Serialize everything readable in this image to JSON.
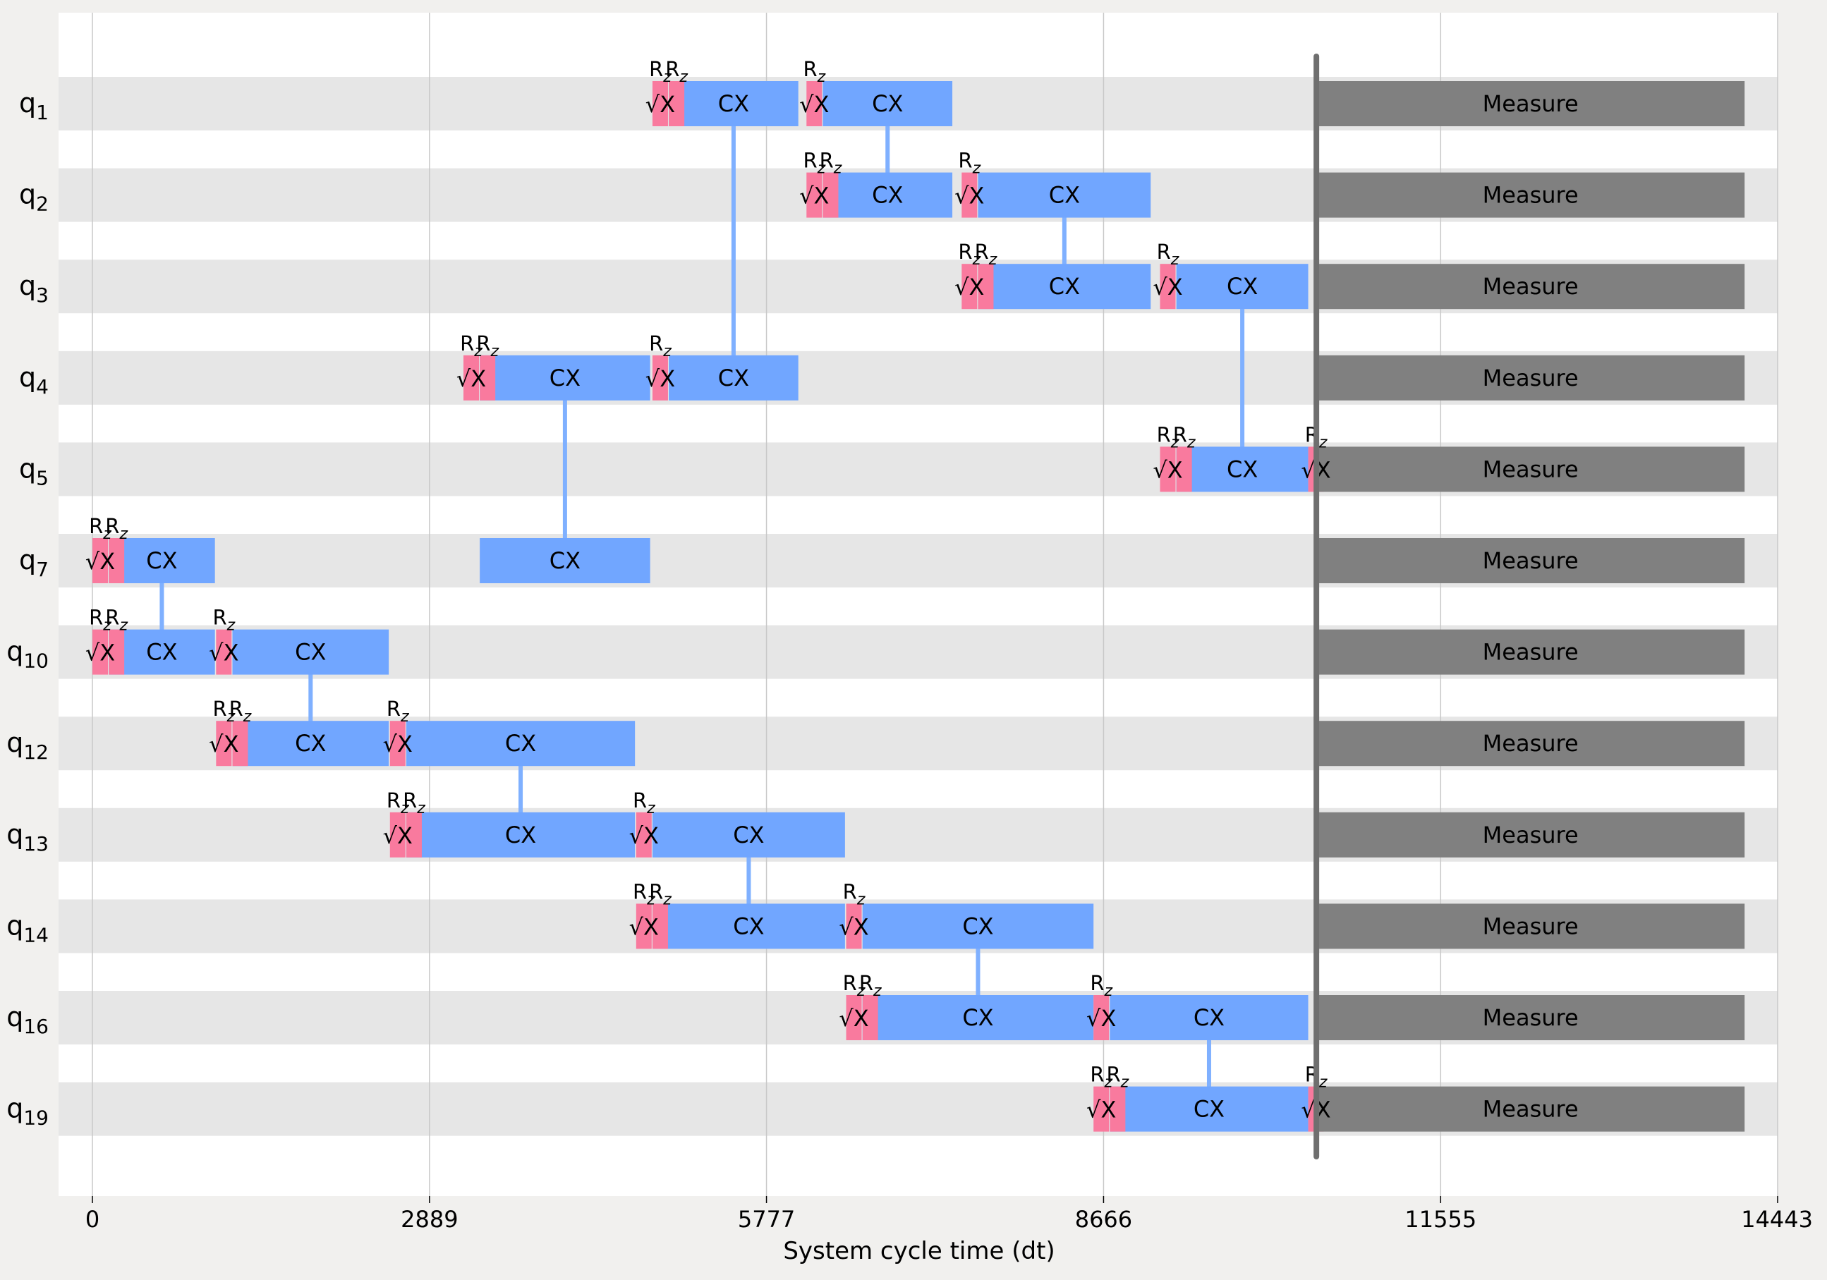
{
  "chart_data": {
    "type": "timeline",
    "xlabel": "System cycle time (dt)",
    "xlim": [
      -480,
      14443
    ],
    "xticks": [
      0,
      2889,
      5777,
      8666,
      11555,
      14443
    ],
    "xtick_labels": [
      "0",
      "2889",
      "5777",
      "8666",
      "11555",
      "14443"
    ],
    "grid": true,
    "qubits": [
      {
        "base": "q",
        "sub": "1"
      },
      {
        "base": "q",
        "sub": "2"
      },
      {
        "base": "q",
        "sub": "3"
      },
      {
        "base": "q",
        "sub": "4"
      },
      {
        "base": "q",
        "sub": "5"
      },
      {
        "base": "q",
        "sub": "7"
      },
      {
        "base": "q",
        "sub": "10"
      },
      {
        "base": "q",
        "sub": "12"
      },
      {
        "base": "q",
        "sub": "13"
      },
      {
        "base": "q",
        "sub": "14"
      },
      {
        "base": "q",
        "sub": "16"
      },
      {
        "base": "q",
        "sub": "19"
      }
    ],
    "gate_labels": {
      "rz": "R",
      "rz_sub": "z",
      "sx": "√X",
      "cx": "CX",
      "measure": "Measure"
    },
    "single_gates": [
      {
        "q": 0,
        "kind": "rz",
        "t": 4800
      },
      {
        "q": 0,
        "kind": "rz",
        "t": 4940
      },
      {
        "q": 0,
        "kind": "sx",
        "t": 4800
      },
      {
        "q": 0,
        "kind": "rz",
        "t": 6120
      },
      {
        "q": 0,
        "kind": "sx",
        "t": 6120
      },
      {
        "q": 1,
        "kind": "rz",
        "t": 6120
      },
      {
        "q": 1,
        "kind": "rz",
        "t": 6260
      },
      {
        "q": 1,
        "kind": "sx",
        "t": 6120
      },
      {
        "q": 1,
        "kind": "rz",
        "t": 7450
      },
      {
        "q": 1,
        "kind": "sx",
        "t": 7450
      },
      {
        "q": 2,
        "kind": "rz",
        "t": 7450
      },
      {
        "q": 2,
        "kind": "rz",
        "t": 7590
      },
      {
        "q": 2,
        "kind": "sx",
        "t": 7450
      },
      {
        "q": 2,
        "kind": "rz",
        "t": 9150
      },
      {
        "q": 2,
        "kind": "sx",
        "t": 9150
      },
      {
        "q": 3,
        "kind": "rz",
        "t": 3180
      },
      {
        "q": 3,
        "kind": "rz",
        "t": 3320
      },
      {
        "q": 3,
        "kind": "sx",
        "t": 3180
      },
      {
        "q": 3,
        "kind": "rz",
        "t": 4800
      },
      {
        "q": 3,
        "kind": "sx",
        "t": 4800
      },
      {
        "q": 4,
        "kind": "rz",
        "t": 9150
      },
      {
        "q": 4,
        "kind": "rz",
        "t": 9290
      },
      {
        "q": 4,
        "kind": "sx",
        "t": 9150
      },
      {
        "q": 4,
        "kind": "rz",
        "t": 10420
      },
      {
        "q": 4,
        "kind": "sx",
        "t": 10420
      },
      {
        "q": 5,
        "kind": "rz",
        "t": 0
      },
      {
        "q": 5,
        "kind": "rz",
        "t": 140
      },
      {
        "q": 5,
        "kind": "sx",
        "t": 0
      },
      {
        "q": 6,
        "kind": "rz",
        "t": 0
      },
      {
        "q": 6,
        "kind": "rz",
        "t": 140
      },
      {
        "q": 6,
        "kind": "sx",
        "t": 0
      },
      {
        "q": 6,
        "kind": "rz",
        "t": 1060
      },
      {
        "q": 6,
        "kind": "sx",
        "t": 1060
      },
      {
        "q": 7,
        "kind": "rz",
        "t": 1060
      },
      {
        "q": 7,
        "kind": "rz",
        "t": 1200
      },
      {
        "q": 7,
        "kind": "sx",
        "t": 1060
      },
      {
        "q": 7,
        "kind": "rz",
        "t": 2550
      },
      {
        "q": 7,
        "kind": "sx",
        "t": 2550
      },
      {
        "q": 8,
        "kind": "rz",
        "t": 2550
      },
      {
        "q": 8,
        "kind": "rz",
        "t": 2690
      },
      {
        "q": 8,
        "kind": "sx",
        "t": 2550
      },
      {
        "q": 8,
        "kind": "rz",
        "t": 4660
      },
      {
        "q": 8,
        "kind": "sx",
        "t": 4660
      },
      {
        "q": 9,
        "kind": "rz",
        "t": 4660
      },
      {
        "q": 9,
        "kind": "rz",
        "t": 4800
      },
      {
        "q": 9,
        "kind": "sx",
        "t": 4660
      },
      {
        "q": 9,
        "kind": "rz",
        "t": 6460
      },
      {
        "q": 9,
        "kind": "sx",
        "t": 6460
      },
      {
        "q": 10,
        "kind": "rz",
        "t": 6460
      },
      {
        "q": 10,
        "kind": "rz",
        "t": 6600
      },
      {
        "q": 10,
        "kind": "sx",
        "t": 6460
      },
      {
        "q": 10,
        "kind": "rz",
        "t": 8580
      },
      {
        "q": 10,
        "kind": "sx",
        "t": 8580
      },
      {
        "q": 11,
        "kind": "rz",
        "t": 8580
      },
      {
        "q": 11,
        "kind": "rz",
        "t": 8720
      },
      {
        "q": 11,
        "kind": "sx",
        "t": 8580
      },
      {
        "q": 11,
        "kind": "rz",
        "t": 10420
      },
      {
        "q": 11,
        "kind": "sx",
        "t": 10420
      }
    ],
    "cx_gates": [
      {
        "q1": 0,
        "q2": 3,
        "t0": 4940,
        "t1": 6050
      },
      {
        "q1": 0,
        "q2": 1,
        "t0": 6260,
        "t1": 7370
      },
      {
        "q1": 1,
        "q2": 2,
        "t0": 7590,
        "t1": 9070
      },
      {
        "q1": 2,
        "q2": 4,
        "t0": 9290,
        "t1": 10420
      },
      {
        "q1": 3,
        "q2": 5,
        "t0": 3320,
        "t1": 4780
      },
      {
        "q1": 5,
        "q2": 6,
        "t0": 140,
        "t1": 1050
      },
      {
        "q1": 6,
        "q2": 7,
        "t0": 1200,
        "t1": 2540
      },
      {
        "q1": 7,
        "q2": 8,
        "t0": 2690,
        "t1": 4650
      },
      {
        "q1": 8,
        "q2": 9,
        "t0": 4800,
        "t1": 6450
      },
      {
        "q1": 9,
        "q2": 10,
        "t0": 6600,
        "t1": 8580
      },
      {
        "q1": 10,
        "q2": 11,
        "t0": 8720,
        "t1": 10420
      }
    ],
    "measure": {
      "t0": 10490,
      "t1": 14160
    },
    "barrier": {
      "t": 10490
    },
    "colors": {
      "background": "#f1f0ee",
      "plot_bg": "#ffffff",
      "row_band": "#e6e6e6",
      "grid": "#c8c8c8",
      "rz": "#f97a9e",
      "sx": "#f97a9e",
      "cx": "#71a6ff",
      "cx_link": "#7fb0ff",
      "measure": "#808080",
      "barrier": "#6f6f6f"
    }
  }
}
